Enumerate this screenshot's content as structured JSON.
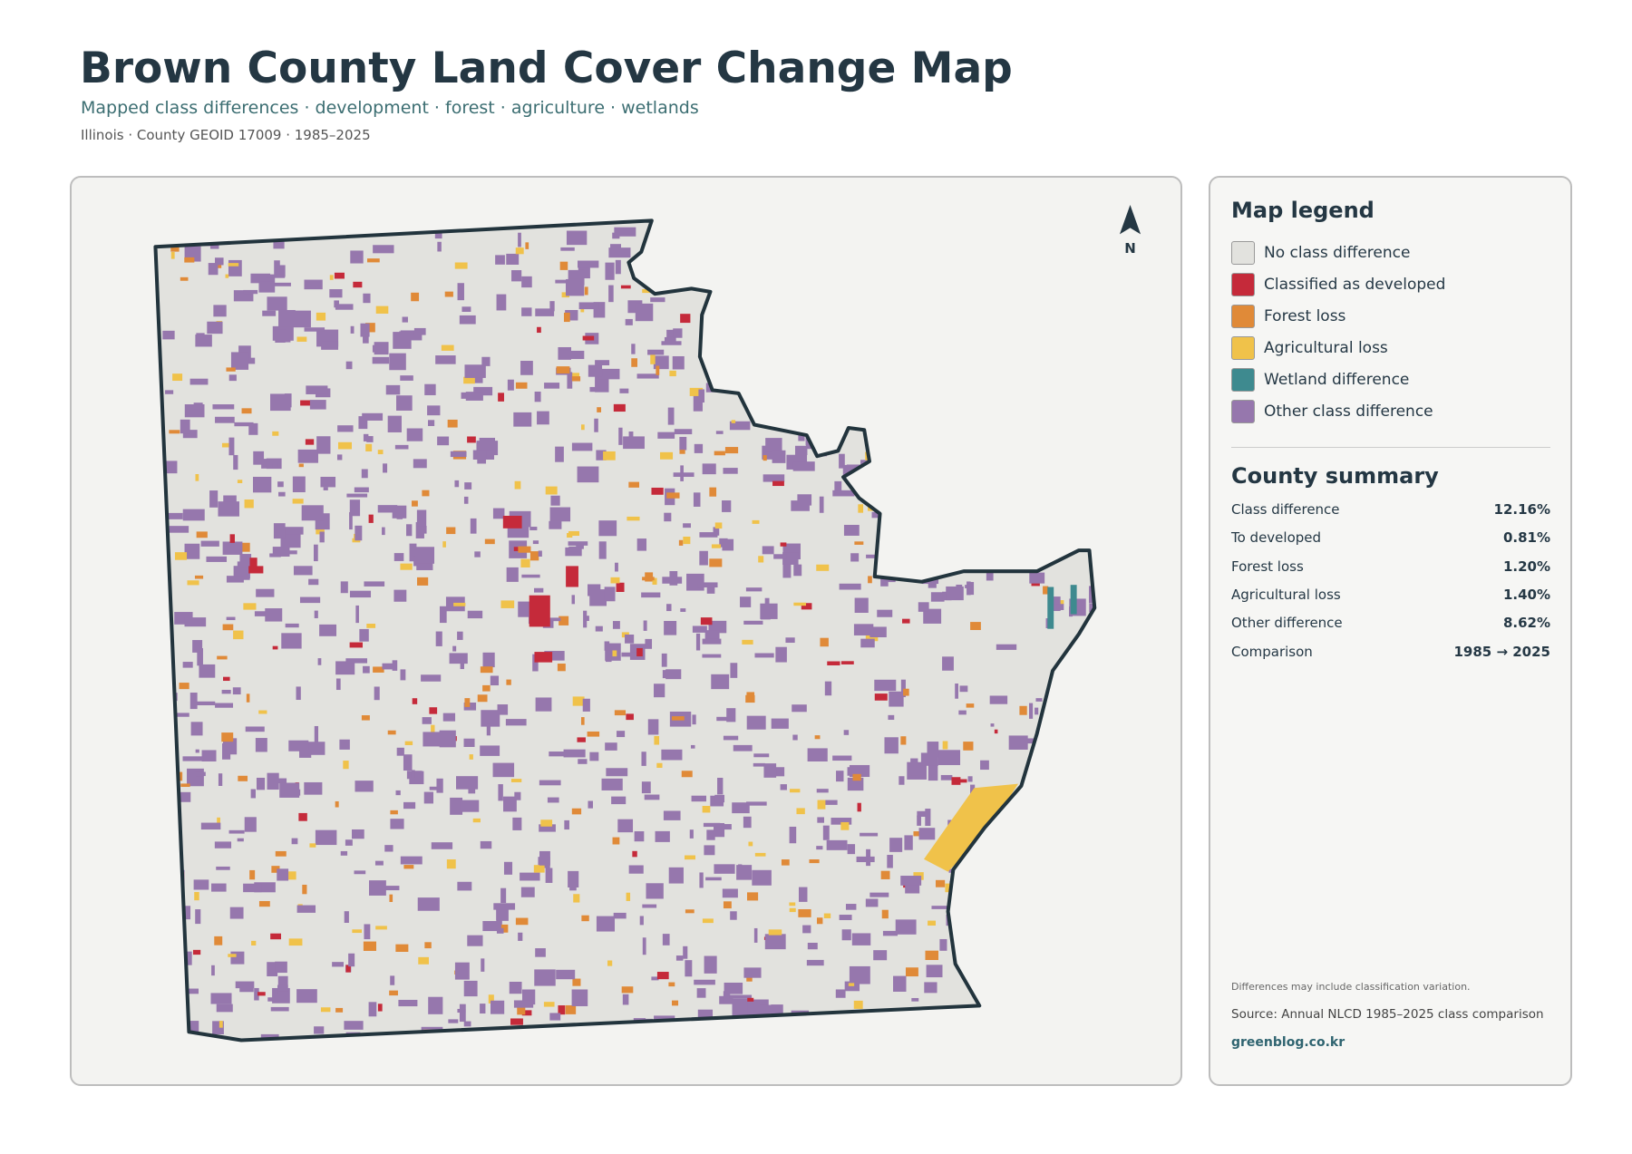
{
  "header": {
    "title": "Brown County Land Cover Change Map",
    "subtitle": "Mapped class differences · development · forest · agriculture · wetlands",
    "meta": "Illinois · County GEOID 17009 · 1985–2025"
  },
  "map": {
    "north": "N"
  },
  "legend": {
    "title": "Map legend",
    "items": [
      {
        "label": "No class difference",
        "color": "#e2e2de"
      },
      {
        "label": "Classified as developed",
        "color": "#c52a3a"
      },
      {
        "label": "Forest loss",
        "color": "#e08a38"
      },
      {
        "label": "Agricultural loss",
        "color": "#f0c24a"
      },
      {
        "label": "Wetland difference",
        "color": "#3e8a8f"
      },
      {
        "label": "Other class difference",
        "color": "#9677ad"
      }
    ]
  },
  "summary": {
    "title": "County summary",
    "rows": [
      {
        "label": "Class difference",
        "value": "12.16%"
      },
      {
        "label": "To developed",
        "value": "0.81%"
      },
      {
        "label": "Forest loss",
        "value": "1.20%"
      },
      {
        "label": "Agricultural loss",
        "value": "1.40%"
      },
      {
        "label": "Other difference",
        "value": "8.62%"
      },
      {
        "label": "Comparison",
        "value": "1985 → 2025"
      }
    ]
  },
  "notes": {
    "caveat": "Differences may include classification variation.",
    "source": "Source: Annual NLCD 1985–2025 class comparison",
    "credit": "greenblog.co.kr"
  }
}
